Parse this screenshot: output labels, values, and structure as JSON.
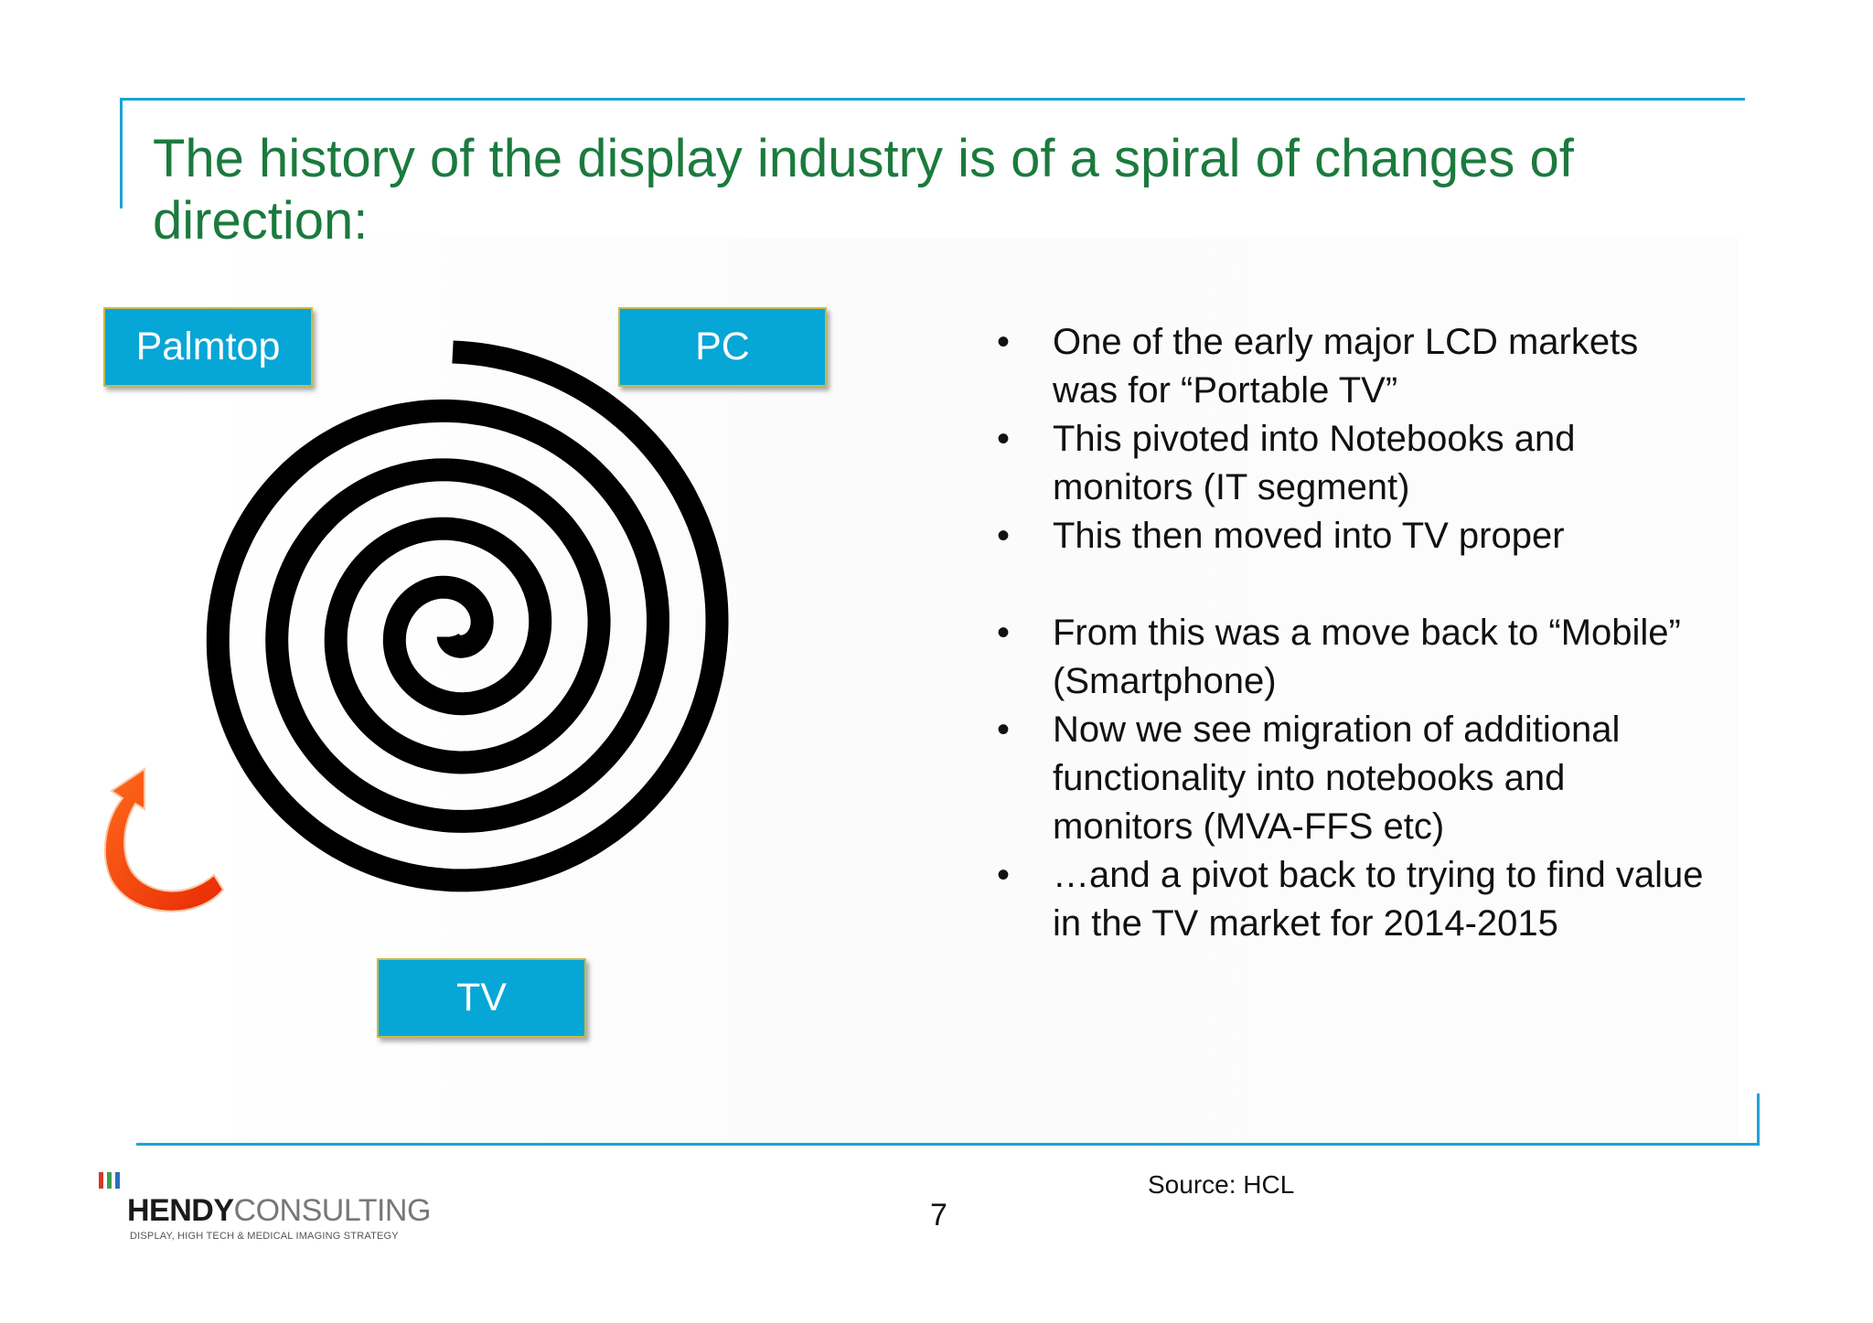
{
  "slide": {
    "title": "The history of the display industry is of a spiral of changes of direction:"
  },
  "diagram": {
    "labels": {
      "palmtop": "Palmtop",
      "pc": "PC",
      "tv": "TV"
    },
    "icons": [
      "spiral-icon",
      "curved-arrow-icon"
    ],
    "colors": {
      "label_fill": "#06a6d6",
      "label_text": "#ffffff",
      "spiral": "#000000",
      "arrow": "#f2380c",
      "rule": "#1ba3d6",
      "title": "#1b7a3e"
    }
  },
  "bullets": {
    "marker": "•",
    "items": [
      "One of the early major LCD markets was for “Portable TV”",
      "This pivoted into Notebooks and monitors (IT segment)",
      "This then moved into TV proper",
      "From this was a move back to “Mobile” (Smartphone)",
      "Now we see migration of additional functionality into notebooks and monitors (MVA-FFS etc)",
      "…and a pivot back to trying to find value in the TV market for 2014-2015"
    ]
  },
  "footer": {
    "source": "Source: HCL",
    "page_number": "7",
    "logo": {
      "name_bold": "HENDY",
      "name_light": "CONSULTING",
      "tagline": "DISPLAY, HIGH TECH & MEDICAL IMAGING STRATEGY"
    }
  }
}
